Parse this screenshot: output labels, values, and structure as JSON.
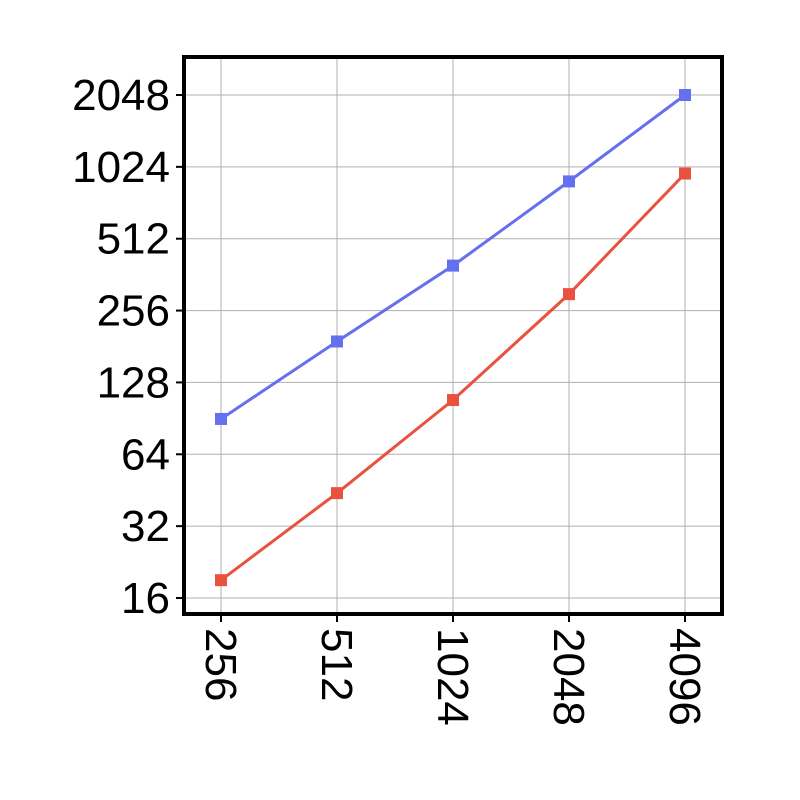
{
  "chart_data": {
    "type": "line",
    "title": "",
    "xlabel": "",
    "ylabel": "",
    "x_scale": "log2",
    "y_scale": "log2",
    "x": [
      256,
      512,
      1024,
      2048,
      4096
    ],
    "x_tick_labels": [
      "256",
      "512",
      "1024",
      "2048",
      "4096"
    ],
    "y_ticks": [
      16,
      32,
      64,
      128,
      256,
      512,
      1024,
      2048
    ],
    "y_tick_labels": [
      "16",
      "32",
      "64",
      "128",
      "256",
      "512",
      "1024",
      "2048"
    ],
    "xlim": [
      256,
      4096
    ],
    "ylim": [
      14,
      2700
    ],
    "grid": true,
    "legend": "none",
    "series": [
      {
        "color": "#6470ee",
        "marker": "square",
        "values": [
          90,
          190,
          395,
          890,
          2048
        ]
      },
      {
        "color": "#e8523e",
        "marker": "square",
        "values": [
          19,
          44,
          108,
          300,
          960
        ]
      }
    ]
  }
}
